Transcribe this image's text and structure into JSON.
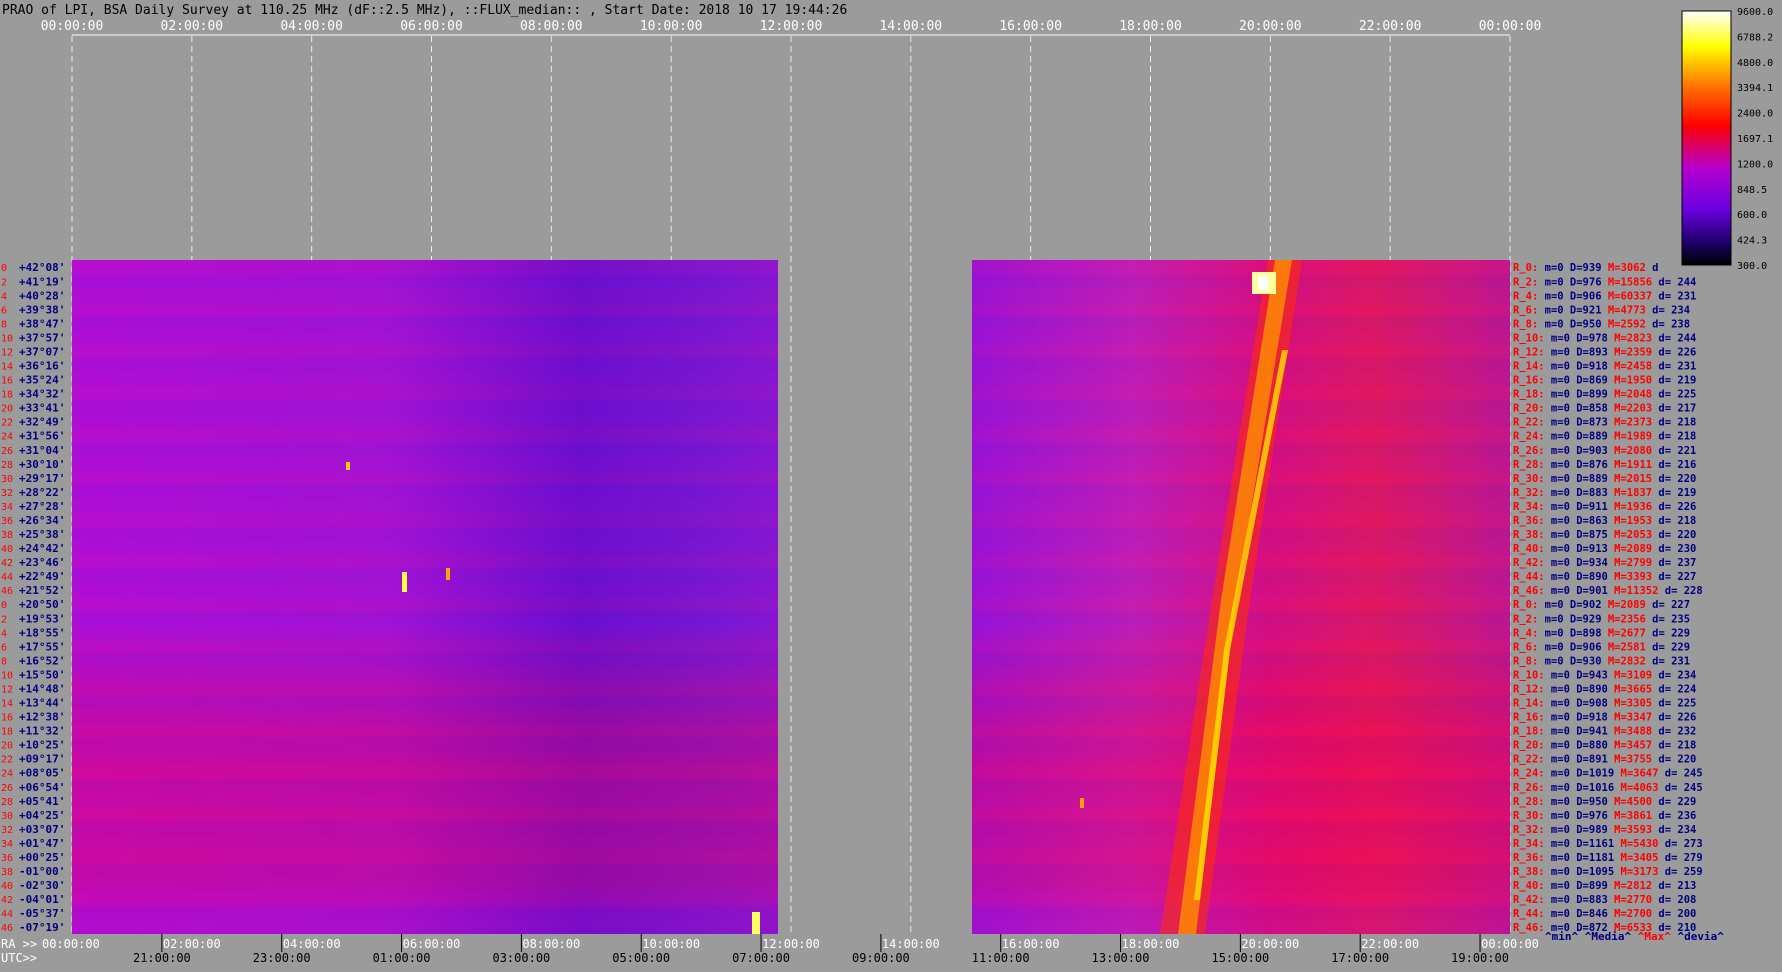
{
  "header": {
    "title": "PRAO of LPI, BSA Daily Survey at 110.25 MHz (dF::2.5 MHz), ::FLUX_median:: , Start Date: 2018 10 17 19:44:26"
  },
  "colors": {
    "background": "#9b9b9b",
    "label_red": "#ff0000",
    "label_blue": "#000080",
    "grid": "#ffffff"
  },
  "chart_data": {
    "type": "heatmap",
    "title": "PRAO of LPI, BSA Daily Survey at 110.25 MHz (dF::2.5 MHz), ::FLUX_median:: , Start Date: 2018 10 17 19:44:26",
    "top_axis_ticks": [
      "00:00:00",
      "02:00:00",
      "04:00:00",
      "06:00:00",
      "08:00:00",
      "10:00:00",
      "12:00:00",
      "14:00:00",
      "16:00:00",
      "18:00:00",
      "20:00:00",
      "22:00:00",
      "00:00:00"
    ],
    "ra_axis": {
      "prefix": "RA >>",
      "ticks": [
        "00:00:00",
        "02:00:00",
        "04:00:00",
        "06:00:00",
        "08:00:00",
        "10:00:00",
        "12:00:00",
        "14:00:00",
        "16:00:00",
        "18:00:00",
        "20:00:00",
        "22:00:00",
        "00:00:00"
      ]
    },
    "utc_axis": {
      "prefix": "UTC>>",
      "ticks": [
        "21:00:00",
        "23:00:00",
        "01:00:00",
        "03:00:00",
        "05:00:00",
        "07:00:00",
        "09:00:00",
        "11:00:00",
        "13:00:00",
        "15:00:00",
        "17:00:00",
        "19:00:00"
      ]
    },
    "declinations": [
      "+42°08'",
      "+41°19'",
      "+40°28'",
      "+39°38'",
      "+38°47'",
      "+37°57'",
      "+37°07'",
      "+36°16'",
      "+35°24'",
      "+34°32'",
      "+33°41'",
      "+32°49'",
      "+31°56'",
      "+31°04'",
      "+30°10'",
      "+29°17'",
      "+28°22'",
      "+27°28'",
      "+26°34'",
      "+25°38'",
      "+24°42'",
      "+23°46'",
      "+22°49'",
      "+21°52'",
      "+20°50'",
      "+19°53'",
      "+18°55'",
      "+17°55'",
      "+16°52'",
      "+15°50'",
      "+14°48'",
      "+13°44'",
      "+12°38'",
      "+11°32'",
      "+10°25'",
      "+09°17'",
      "+08°05'",
      "+06°54'",
      "+05°41'",
      "+04°25'",
      "+03°07'",
      "+01°47'",
      "+00°25'",
      "-01°00'",
      "-02°30'",
      "-04°01'",
      "-05°37'",
      "-07°19'"
    ],
    "channel_indices": [
      "0",
      "2",
      "4",
      "6",
      "8",
      "10",
      "12",
      "14",
      "16",
      "18",
      "20",
      "22",
      "24",
      "26",
      "28",
      "30",
      "32",
      "34",
      "36",
      "38",
      "40",
      "42",
      "44",
      "46",
      "0",
      "2",
      "4",
      "6",
      "8",
      "10",
      "12",
      "14",
      "16",
      "18",
      "20",
      "22",
      "24",
      "26",
      "28",
      "30",
      "32",
      "34",
      "36",
      "38",
      "40",
      "42",
      "44",
      "46"
    ],
    "data_gaps_ra_hours": [
      [
        11.75,
        15.0
      ]
    ],
    "colorbar": {
      "ticks": [
        "9600.0",
        "6788.2",
        "4800.0",
        "3394.1",
        "2400.0",
        "1697.1",
        "1200.0",
        "848.5",
        "600.0",
        "424.3",
        "300.0"
      ],
      "min": 300.0,
      "max": 9600.0,
      "scale": "log"
    },
    "side_stats": [
      {
        "name": "R_0:",
        "m": "m=0",
        "D": "D=939",
        "M": "M=3062",
        "d": "d"
      },
      {
        "name": "R_2:",
        "m": "m=0",
        "D": "D=976",
        "M": "M=15856",
        "d": "d= 244"
      },
      {
        "name": "R_4:",
        "m": "m=0",
        "D": "D=906",
        "M": "M=60337",
        "d": "d= 231"
      },
      {
        "name": "R_6:",
        "m": "m=0",
        "D": "D=921",
        "M": "M=4773",
        "d": "d= 234"
      },
      {
        "name": "R_8:",
        "m": "m=0",
        "D": "D=950",
        "M": "M=2592",
        "d": "d= 238"
      },
      {
        "name": "R_10:",
        "m": "m=0",
        "D": "D=978",
        "M": "M=2823",
        "d": "d= 244"
      },
      {
        "name": "R_12:",
        "m": "m=0",
        "D": "D=893",
        "M": "M=2359",
        "d": "d= 226"
      },
      {
        "name": "R_14:",
        "m": "m=0",
        "D": "D=918",
        "M": "M=2458",
        "d": "d= 231"
      },
      {
        "name": "R_16:",
        "m": "m=0",
        "D": "D=869",
        "M": "M=1950",
        "d": "d= 219"
      },
      {
        "name": "R_18:",
        "m": "m=0",
        "D": "D=899",
        "M": "M=2048",
        "d": "d= 225"
      },
      {
        "name": "R_20:",
        "m": "m=0",
        "D": "D=858",
        "M": "M=2203",
        "d": "d= 217"
      },
      {
        "name": "R_22:",
        "m": "m=0",
        "D": "D=873",
        "M": "M=2373",
        "d": "d= 218"
      },
      {
        "name": "R_24:",
        "m": "m=0",
        "D": "D=889",
        "M": "M=1989",
        "d": "d= 218"
      },
      {
        "name": "R_26:",
        "m": "m=0",
        "D": "D=903",
        "M": "M=2080",
        "d": "d= 221"
      },
      {
        "name": "R_28:",
        "m": "m=0",
        "D": "D=876",
        "M": "M=1911",
        "d": "d= 216"
      },
      {
        "name": "R_30:",
        "m": "m=0",
        "D": "D=889",
        "M": "M=2015",
        "d": "d= 220"
      },
      {
        "name": "R_32:",
        "m": "m=0",
        "D": "D=883",
        "M": "M=1837",
        "d": "d= 219"
      },
      {
        "name": "R_34:",
        "m": "m=0",
        "D": "D=911",
        "M": "M=1936",
        "d": "d= 226"
      },
      {
        "name": "R_36:",
        "m": "m=0",
        "D": "D=863",
        "M": "M=1953",
        "d": "d= 218"
      },
      {
        "name": "R_38:",
        "m": "m=0",
        "D": "D=875",
        "M": "M=2053",
        "d": "d= 220"
      },
      {
        "name": "R_40:",
        "m": "m=0",
        "D": "D=913",
        "M": "M=2089",
        "d": "d= 230"
      },
      {
        "name": "R_42:",
        "m": "m=0",
        "D": "D=934",
        "M": "M=2799",
        "d": "d= 237"
      },
      {
        "name": "R_44:",
        "m": "m=0",
        "D": "D=890",
        "M": "M=3393",
        "d": "d= 227"
      },
      {
        "name": "R_46:",
        "m": "m=0",
        "D": "D=901",
        "M": "M=11352",
        "d": "d= 228"
      },
      {
        "name": "R_0:",
        "m": "m=0",
        "D": "D=902",
        "M": "M=2089",
        "d": "d= 227"
      },
      {
        "name": "R_2:",
        "m": "m=0",
        "D": "D=929",
        "M": "M=2356",
        "d": "d= 235"
      },
      {
        "name": "R_4:",
        "m": "m=0",
        "D": "D=898",
        "M": "M=2677",
        "d": "d= 229"
      },
      {
        "name": "R_6:",
        "m": "m=0",
        "D": "D=906",
        "M": "M=2581",
        "d": "d= 229"
      },
      {
        "name": "R_8:",
        "m": "m=0",
        "D": "D=930",
        "M": "M=2832",
        "d": "d= 231"
      },
      {
        "name": "R_10:",
        "m": "m=0",
        "D": "D=943",
        "M": "M=3109",
        "d": "d= 234"
      },
      {
        "name": "R_12:",
        "m": "m=0",
        "D": "D=890",
        "M": "M=3665",
        "d": "d= 224"
      },
      {
        "name": "R_14:",
        "m": "m=0",
        "D": "D=908",
        "M": "M=3305",
        "d": "d= 225"
      },
      {
        "name": "R_16:",
        "m": "m=0",
        "D": "D=918",
        "M": "M=3347",
        "d": "d= 226"
      },
      {
        "name": "R_18:",
        "m": "m=0",
        "D": "D=941",
        "M": "M=3488",
        "d": "d= 232"
      },
      {
        "name": "R_20:",
        "m": "m=0",
        "D": "D=880",
        "M": "M=3457",
        "d": "d= 218"
      },
      {
        "name": "R_22:",
        "m": "m=0",
        "D": "D=891",
        "M": "M=3755",
        "d": "d= 220"
      },
      {
        "name": "R_24:",
        "m": "m=0",
        "D": "D=1019",
        "M": "M=3647",
        "d": "d= 245"
      },
      {
        "name": "R_26:",
        "m": "m=0",
        "D": "D=1016",
        "M": "M=4063",
        "d": "d= 245"
      },
      {
        "name": "R_28:",
        "m": "m=0",
        "D": "D=950",
        "M": "M=4500",
        "d": "d= 229"
      },
      {
        "name": "R_30:",
        "m": "m=0",
        "D": "D=976",
        "M": "M=3861",
        "d": "d= 236"
      },
      {
        "name": "R_32:",
        "m": "m=0",
        "D": "D=989",
        "M": "M=3593",
        "d": "d= 234"
      },
      {
        "name": "R_34:",
        "m": "m=0",
        "D": "D=1161",
        "M": "M=5430",
        "d": "d= 273"
      },
      {
        "name": "R_36:",
        "m": "m=0",
        "D": "D=1181",
        "M": "M=3405",
        "d": "d= 279"
      },
      {
        "name": "R_38:",
        "m": "m=0",
        "D": "D=1095",
        "M": "M=3173",
        "d": "d= 259"
      },
      {
        "name": "R_40:",
        "m": "m=0",
        "D": "D=899",
        "M": "M=2812",
        "d": "d= 213"
      },
      {
        "name": "R_42:",
        "m": "m=0",
        "D": "D=883",
        "M": "M=2770",
        "d": "d= 208"
      },
      {
        "name": "R_44:",
        "m": "m=0",
        "D": "D=846",
        "M": "M=2700",
        "d": "d= 200"
      },
      {
        "name": "R_46:",
        "m": "m=0",
        "D": "D=872",
        "M": "M=6533",
        "d": "d= 210"
      }
    ],
    "stats_legend": [
      "^min^",
      "^Media^",
      "^Max^",
      "^devia^"
    ]
  }
}
